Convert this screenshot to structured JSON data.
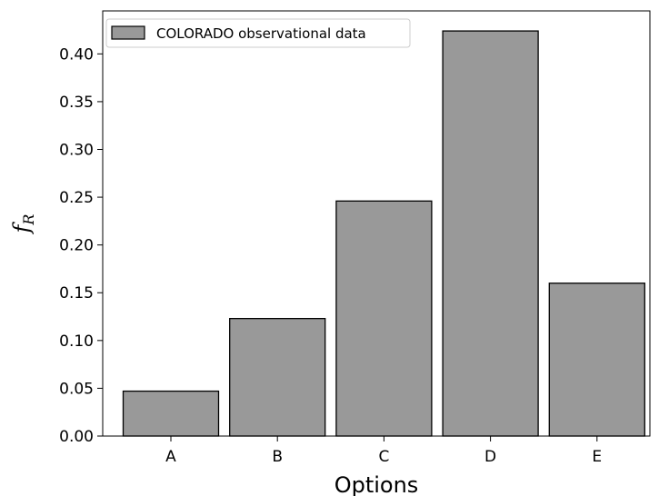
{
  "chart_data": {
    "type": "bar",
    "categories": [
      "A",
      "B",
      "C",
      "D",
      "E"
    ],
    "series": [
      {
        "name": "COLORADO observational data",
        "values": [
          0.047,
          0.123,
          0.246,
          0.424,
          0.16
        ]
      }
    ],
    "title": "",
    "xlabel": "Options",
    "ylabel_main": "f",
    "ylabel_sub": "R",
    "ylim": [
      0,
      0.445
    ],
    "yticks": [
      "0.00",
      "0.05",
      "0.10",
      "0.15",
      "0.20",
      "0.25",
      "0.30",
      "0.35",
      "0.40"
    ],
    "bar_color": "#999999",
    "edge_color": "#000000",
    "grid": false,
    "legend_position": "top-left"
  }
}
